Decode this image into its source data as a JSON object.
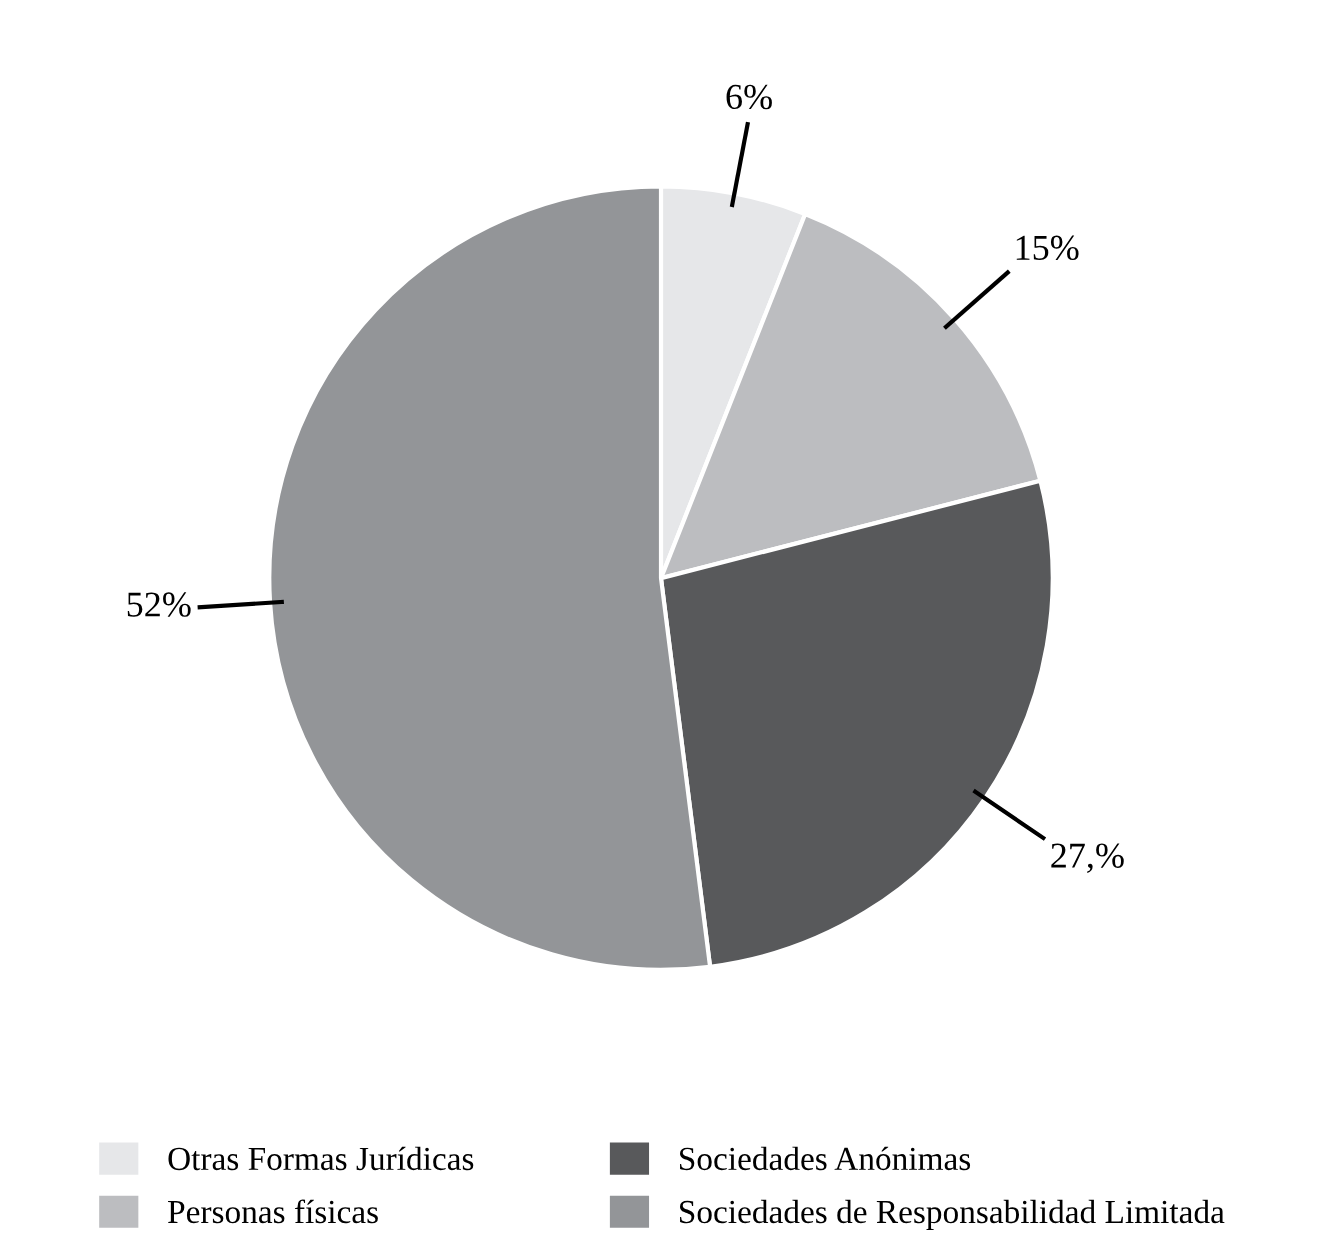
{
  "chart_data": {
    "type": "pie",
    "categories": [
      "Otras Formas Jurídicas",
      "Personas físicas",
      "Sociedades Anónimas",
      "Sociedades de Responsabilidad Limitada"
    ],
    "values": [
      6,
      15,
      27,
      52
    ],
    "colors": [
      "#e6e7e9",
      "#bcbdc0",
      "#58595b",
      "#939598"
    ],
    "value_labels": [
      "6%",
      "15%",
      "27,%",
      "52%"
    ],
    "legend": "bottom"
  }
}
